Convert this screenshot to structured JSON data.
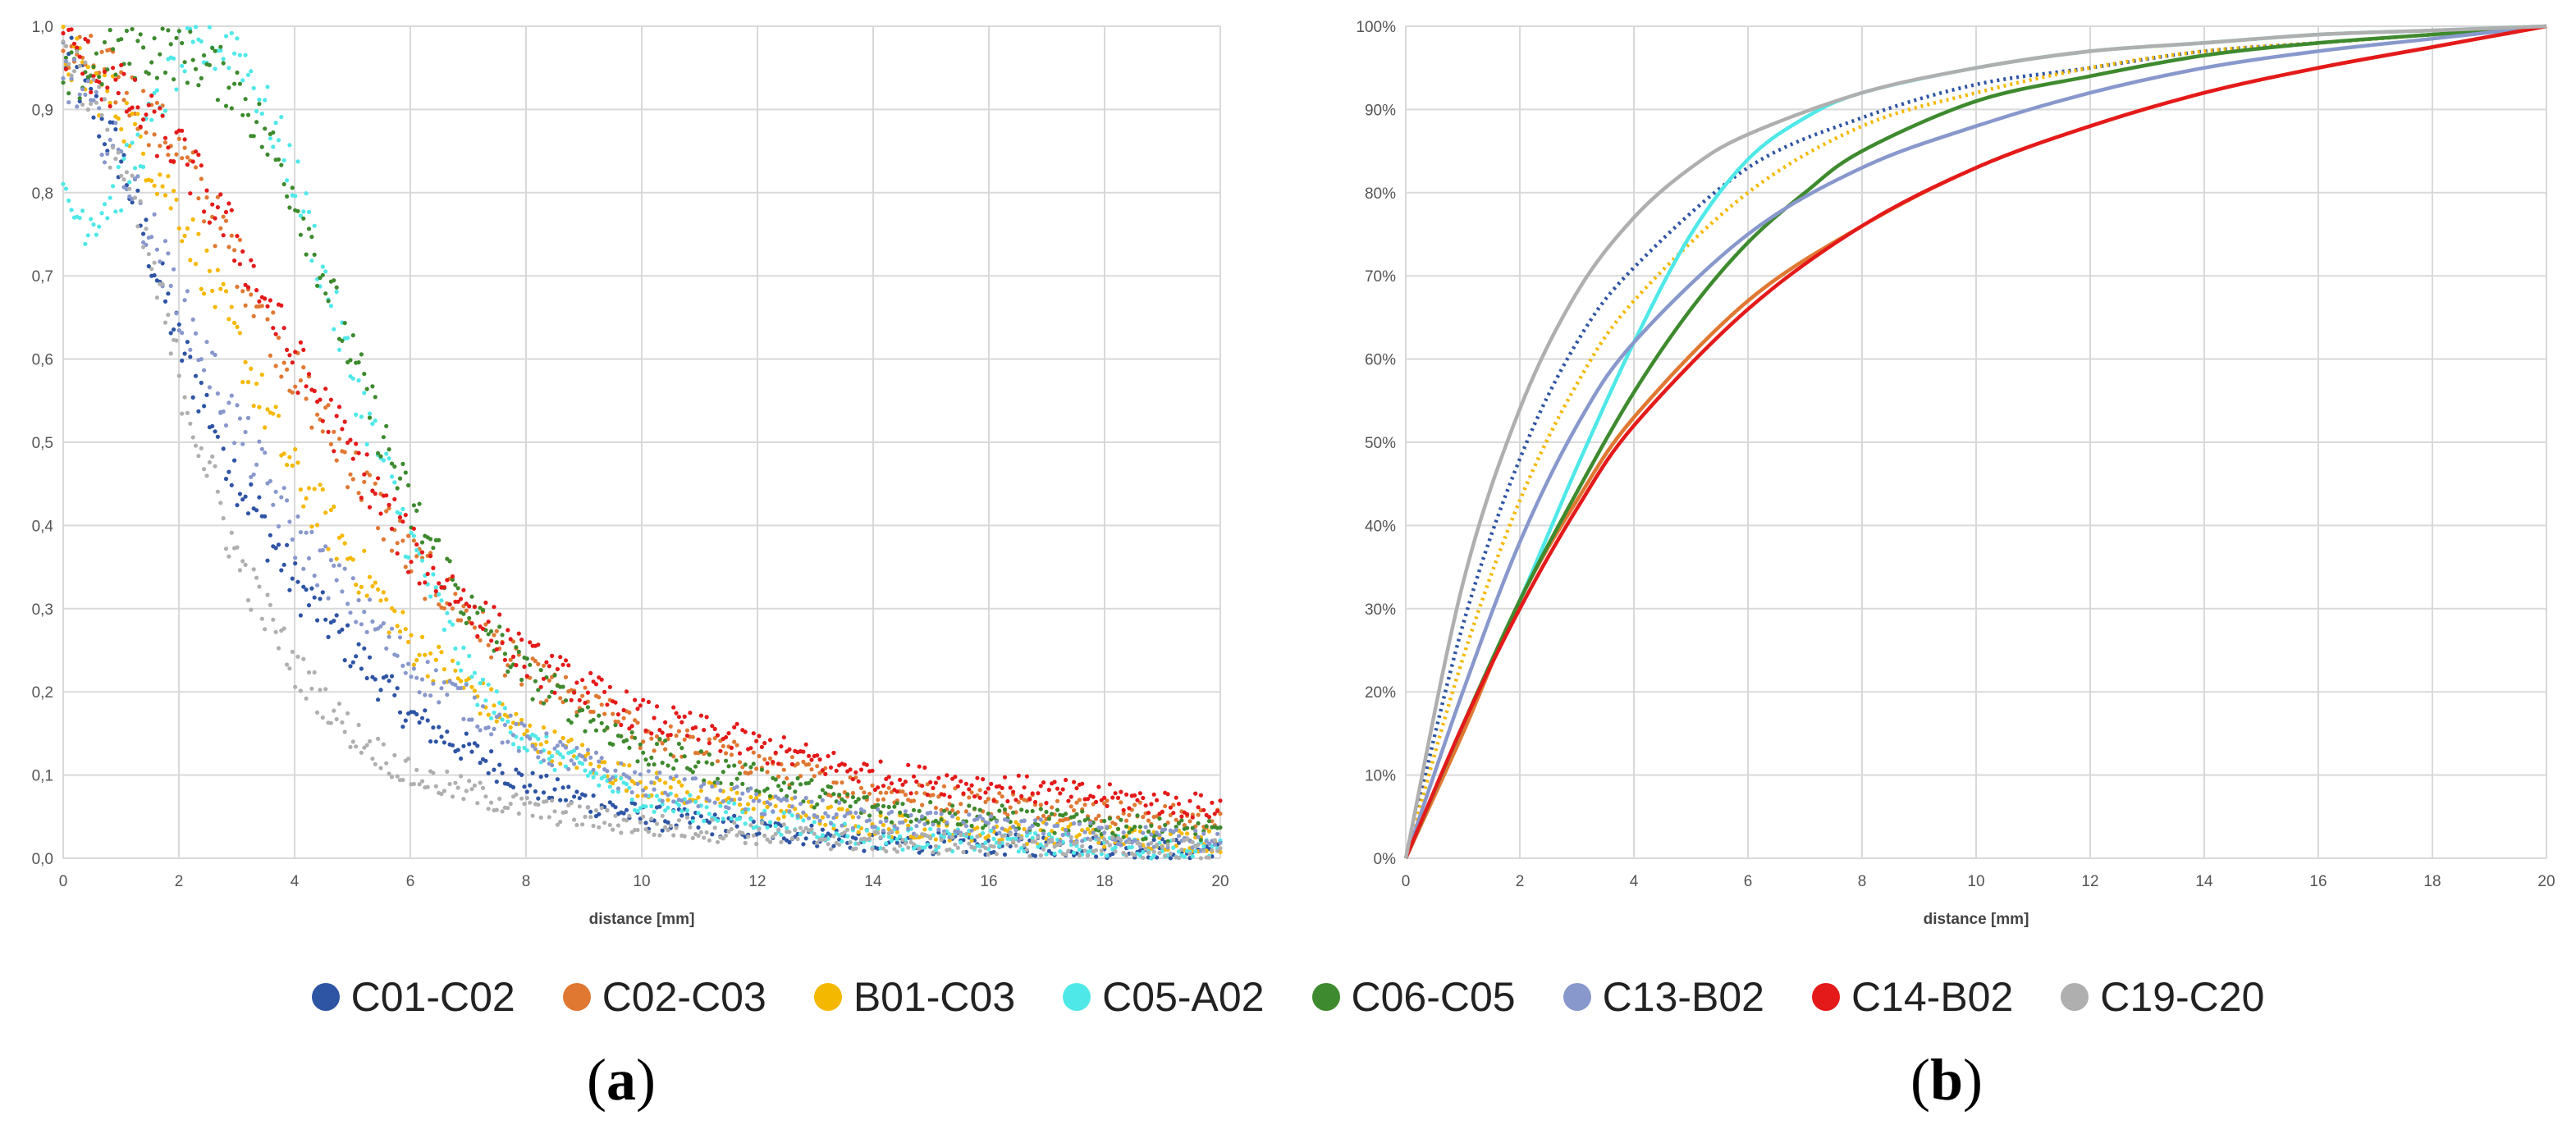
{
  "chart_data": [
    {
      "type": "scatter",
      "panel": "a",
      "title": "",
      "xlabel": "distance [mm]",
      "ylabel": "",
      "xlim": [
        0,
        20
      ],
      "ylim": [
        0,
        1
      ],
      "grid": true,
      "x_ticks": [
        "0",
        "2",
        "4",
        "6",
        "8",
        "10",
        "12",
        "14",
        "16",
        "18",
        "20"
      ],
      "y_ticks": [
        "0,0",
        "0,1",
        "0,2",
        "0,3",
        "0,4",
        "0,5",
        "0,6",
        "0,7",
        "0,8",
        "0,9",
        "1,0"
      ],
      "series": [
        {
          "name": "C01-C02",
          "color": "#2E54A4",
          "x": [
            0,
            1,
            2,
            3,
            4,
            6,
            8,
            10,
            14,
            20
          ],
          "y": [
            0.97,
            0.84,
            0.62,
            0.46,
            0.33,
            0.17,
            0.09,
            0.05,
            0.02,
            0.01
          ]
        },
        {
          "name": "C02-C03",
          "color": "#E07832",
          "x": [
            0,
            1,
            2,
            3,
            4,
            6,
            8,
            10,
            14,
            20
          ],
          "y": [
            0.98,
            0.93,
            0.85,
            0.72,
            0.58,
            0.36,
            0.22,
            0.15,
            0.08,
            0.045
          ]
        },
        {
          "name": "B01-C03",
          "color": "#F5B800",
          "x": [
            0,
            1,
            2,
            3,
            4,
            6,
            8,
            10,
            14,
            20
          ],
          "y": [
            0.97,
            0.9,
            0.78,
            0.62,
            0.46,
            0.26,
            0.15,
            0.09,
            0.04,
            0.02
          ]
        },
        {
          "name": "C05-A02",
          "color": "#4FE8E8",
          "x": [
            0,
            0.5,
            1,
            1.5,
            2,
            3,
            4,
            5,
            6,
            7,
            8,
            10,
            14,
            20
          ],
          "y": [
            0.78,
            0.77,
            0.81,
            0.88,
            0.96,
            0.98,
            0.82,
            0.58,
            0.38,
            0.22,
            0.14,
            0.07,
            0.025,
            0.01
          ]
        },
        {
          "name": "C06-C05",
          "color": "#3E8A2E",
          "x": [
            0,
            1,
            2,
            3,
            4,
            5,
            6,
            7,
            8,
            10,
            14,
            20
          ],
          "y": [
            0.93,
            0.97,
            0.97,
            0.93,
            0.8,
            0.6,
            0.42,
            0.3,
            0.22,
            0.13,
            0.06,
            0.03
          ]
        },
        {
          "name": "C13-B02",
          "color": "#8898CC",
          "x": [
            0,
            1,
            2,
            3,
            4,
            6,
            8,
            10,
            14,
            20
          ],
          "y": [
            0.95,
            0.84,
            0.67,
            0.52,
            0.39,
            0.23,
            0.14,
            0.09,
            0.045,
            0.02
          ]
        },
        {
          "name": "C14-B02",
          "color": "#E41A1A",
          "x": [
            0,
            1,
            2,
            3,
            4,
            6,
            8,
            10,
            14,
            20
          ],
          "y": [
            0.98,
            0.92,
            0.85,
            0.74,
            0.6,
            0.37,
            0.24,
            0.17,
            0.1,
            0.06
          ]
        },
        {
          "name": "C19-C20",
          "color": "#AFAFAF",
          "x": [
            0,
            0.5,
            1,
            1.5,
            2,
            3,
            4,
            5,
            6,
            8,
            10,
            14,
            20
          ],
          "y": [
            0.98,
            0.92,
            0.83,
            0.72,
            0.58,
            0.36,
            0.23,
            0.15,
            0.1,
            0.06,
            0.04,
            0.02,
            0.01
          ]
        }
      ]
    },
    {
      "type": "line",
      "panel": "b",
      "title": "",
      "xlabel": "distance [mm]",
      "ylabel": "",
      "xlim": [
        0,
        20
      ],
      "ylim": [
        0,
        100
      ],
      "grid": true,
      "x_ticks": [
        "0",
        "2",
        "4",
        "6",
        "8",
        "10",
        "12",
        "14",
        "16",
        "18",
        "20"
      ],
      "y_ticks": [
        "0%",
        "10%",
        "20%",
        "30%",
        "40%",
        "50%",
        "60%",
        "70%",
        "80%",
        "90%",
        "100%"
      ],
      "series": [
        {
          "name": "C01-C02",
          "color": "#2E54A4",
          "x": [
            0,
            1,
            2,
            3,
            4,
            6,
            8,
            10,
            12,
            14,
            16,
            18,
            20
          ],
          "y": [
            0,
            28,
            48,
            62,
            71,
            83,
            89,
            93,
            95,
            97,
            98,
            99,
            100
          ]
        },
        {
          "name": "C02-C03",
          "color": "#E07832",
          "x": [
            0,
            1,
            2,
            3,
            4,
            6,
            8,
            10,
            12,
            14,
            16,
            18,
            20
          ],
          "y": [
            0,
            15,
            31,
            43,
            53,
            67,
            76,
            83,
            88,
            92,
            95,
            97.5,
            100
          ]
        },
        {
          "name": "B01-C03",
          "color": "#F5B800",
          "x": [
            0,
            1,
            2,
            3,
            4,
            6,
            8,
            10,
            12,
            14,
            16,
            18,
            20
          ],
          "y": [
            0,
            24,
            43,
            57,
            67,
            80,
            88,
            92,
            95,
            97,
            98,
            99,
            100
          ]
        },
        {
          "name": "C05-A02",
          "color": "#4FE8E8",
          "x": [
            0,
            1,
            2,
            3,
            4,
            5,
            6,
            7,
            8,
            10,
            12,
            14,
            16,
            18,
            20
          ],
          "y": [
            0,
            16,
            31,
            47,
            62,
            75,
            84,
            89,
            92,
            95,
            97,
            98,
            99,
            99.5,
            100
          ]
        },
        {
          "name": "C06-C05",
          "color": "#3E8A2E",
          "x": [
            0,
            1,
            2,
            3,
            4,
            5,
            6,
            7,
            8,
            10,
            12,
            14,
            16,
            18,
            20
          ],
          "y": [
            0,
            16,
            31,
            44,
            56,
            66,
            74,
            80,
            85,
            91,
            94,
            96.5,
            98,
            99,
            100
          ]
        },
        {
          "name": "C13-B02",
          "color": "#8898CC",
          "x": [
            0,
            1,
            2,
            3,
            4,
            6,
            8,
            10,
            12,
            14,
            16,
            18,
            20
          ],
          "y": [
            0,
            20,
            38,
            52,
            62,
            75,
            83,
            88,
            92,
            95,
            97,
            98.5,
            100
          ]
        },
        {
          "name": "C14-B02",
          "color": "#E41A1A",
          "x": [
            0,
            1,
            2,
            3,
            4,
            6,
            8,
            10,
            12,
            14,
            16,
            18,
            20
          ],
          "y": [
            0,
            16,
            30,
            42,
            52,
            66,
            76,
            83,
            88,
            92,
            95,
            97.5,
            100
          ]
        },
        {
          "name": "C19-C20",
          "color": "#AFAFAF",
          "x": [
            0,
            1,
            2,
            3,
            4,
            5,
            6,
            8,
            10,
            12,
            14,
            16,
            18,
            20
          ],
          "y": [
            0,
            33,
            54,
            68,
            77,
            83,
            87,
            92,
            95,
            97,
            98,
            99,
            99.5,
            100
          ]
        }
      ]
    }
  ],
  "legend": {
    "items": [
      {
        "label": "C01-C02",
        "color": "#2E54A4"
      },
      {
        "label": "C02-C03",
        "color": "#E07832"
      },
      {
        "label": "B01-C03",
        "color": "#F5B800"
      },
      {
        "label": "C05-A02",
        "color": "#4FE8E8"
      },
      {
        "label": "C06-C05",
        "color": "#3E8A2E"
      },
      {
        "label": "C13-B02",
        "color": "#8898CC"
      },
      {
        "label": "C14-B02",
        "color": "#E41A1A"
      },
      {
        "label": "C19-C20",
        "color": "#AFAFAF"
      }
    ]
  },
  "panels": {
    "a_label": "a",
    "b_label": "b"
  }
}
